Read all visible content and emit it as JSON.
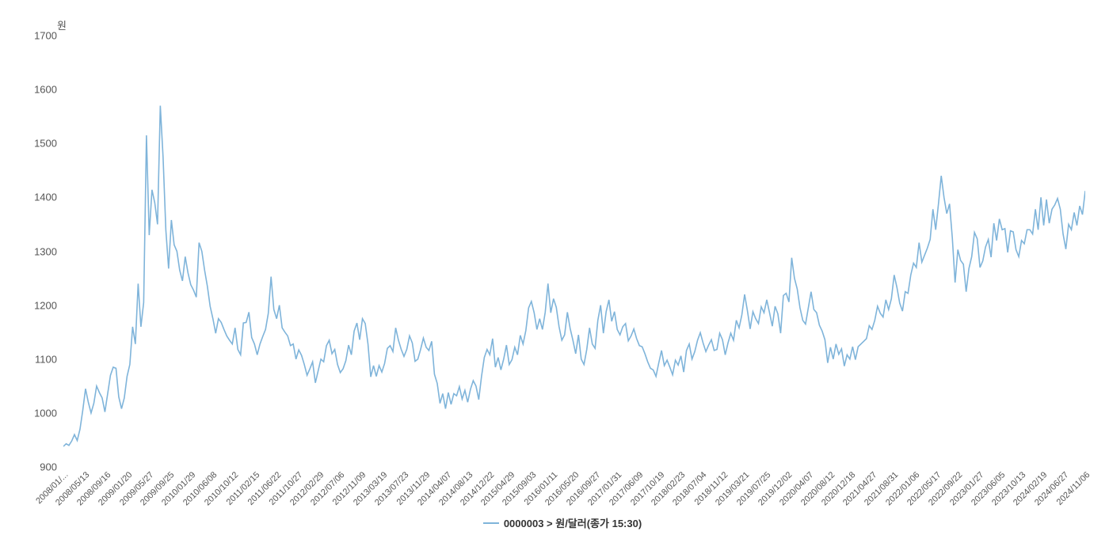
{
  "chart": {
    "type": "line",
    "y_axis": {
      "title": "원",
      "ticks": [
        900,
        1000,
        1100,
        1200,
        1300,
        1400,
        1500,
        1600,
        1700
      ],
      "min": 900,
      "max": 1700,
      "title_fontsize": 13,
      "label_fontsize": 13,
      "label_color": "#555555"
    },
    "x_axis": {
      "labels": [
        "2008/01/...",
        "2008/05/13",
        "2008/09/16",
        "2009/01/20",
        "2009/05/27",
        "2009/09/25",
        "2010/01/29",
        "2010/06/08",
        "2010/10/12",
        "2011/02/15",
        "2011/06/22",
        "2011/10/27",
        "2012/02/29",
        "2012/07/06",
        "2012/11/09",
        "2013/03/19",
        "2013/07/23",
        "2013/11/29",
        "2014/04/07",
        "2014/08/13",
        "2014/12/22",
        "2015/04/29",
        "2015/09/03",
        "2016/01/11",
        "2016/05/20",
        "2016/09/27",
        "2017/01/31",
        "2017/06/09",
        "2017/10/19",
        "2018/02/23",
        "2018/07/04",
        "2018/11/12",
        "2019/03/21",
        "2019/07/25",
        "2019/12/02",
        "2020/04/07",
        "2020/08/12",
        "2020/12/18",
        "2021/04/27",
        "2021/08/31",
        "2022/01/06",
        "2022/05/17",
        "2022/09/22",
        "2023/01/27",
        "2023/06/05",
        "2023/10/13",
        "2024/02/19",
        "2024/06/27",
        "2024/11/06"
      ],
      "label_fontsize": 11,
      "label_color": "#555555",
      "rotation": -45
    },
    "series": {
      "color": "#7fb4da",
      "line_width": 1.6,
      "data": [
        938,
        943,
        940,
        948,
        960,
        949,
        970,
        1005,
        1045,
        1020,
        1000,
        1018,
        1050,
        1038,
        1028,
        1002,
        1036,
        1070,
        1085,
        1083,
        1030,
        1008,
        1028,
        1068,
        1090,
        1160,
        1128,
        1240,
        1160,
        1205,
        1515,
        1330,
        1414,
        1390,
        1350,
        1570,
        1475,
        1340,
        1268,
        1358,
        1312,
        1300,
        1265,
        1245,
        1290,
        1260,
        1238,
        1228,
        1215,
        1316,
        1300,
        1265,
        1235,
        1198,
        1175,
        1148,
        1175,
        1168,
        1155,
        1143,
        1135,
        1128,
        1158,
        1118,
        1108,
        1167,
        1168,
        1187,
        1140,
        1128,
        1108,
        1128,
        1142,
        1155,
        1185,
        1253,
        1192,
        1175,
        1200,
        1158,
        1150,
        1143,
        1125,
        1128,
        1100,
        1117,
        1107,
        1090,
        1070,
        1082,
        1095,
        1056,
        1078,
        1100,
        1095,
        1125,
        1135,
        1110,
        1118,
        1090,
        1075,
        1082,
        1097,
        1126,
        1108,
        1152,
        1167,
        1136,
        1175,
        1166,
        1128,
        1067,
        1088,
        1068,
        1088,
        1076,
        1092,
        1120,
        1125,
        1114,
        1158,
        1135,
        1118,
        1105,
        1118,
        1143,
        1130,
        1096,
        1100,
        1118,
        1139,
        1122,
        1116,
        1133,
        1072,
        1055,
        1018,
        1036,
        1008,
        1038,
        1016,
        1036,
        1032,
        1049,
        1026,
        1042,
        1020,
        1044,
        1060,
        1050,
        1025,
        1068,
        1103,
        1118,
        1108,
        1138,
        1085,
        1103,
        1080,
        1100,
        1126,
        1090,
        1099,
        1122,
        1108,
        1144,
        1128,
        1153,
        1195,
        1207,
        1186,
        1155,
        1175,
        1155,
        1187,
        1240,
        1186,
        1212,
        1196,
        1160,
        1135,
        1145,
        1187,
        1157,
        1135,
        1110,
        1145,
        1100,
        1090,
        1118,
        1158,
        1128,
        1120,
        1172,
        1200,
        1148,
        1188,
        1210,
        1170,
        1188,
        1155,
        1145,
        1160,
        1166,
        1134,
        1143,
        1156,
        1138,
        1125,
        1123,
        1110,
        1095,
        1083,
        1080,
        1068,
        1093,
        1116,
        1088,
        1098,
        1085,
        1071,
        1098,
        1089,
        1106,
        1076,
        1116,
        1128,
        1100,
        1114,
        1135,
        1149,
        1130,
        1114,
        1126,
        1136,
        1116,
        1118,
        1148,
        1136,
        1108,
        1130,
        1148,
        1135,
        1172,
        1158,
        1182,
        1220,
        1190,
        1156,
        1188,
        1175,
        1166,
        1197,
        1186,
        1210,
        1186,
        1161,
        1198,
        1184,
        1148,
        1218,
        1222,
        1206,
        1288,
        1250,
        1230,
        1195,
        1172,
        1165,
        1195,
        1225,
        1192,
        1186,
        1163,
        1152,
        1136,
        1093,
        1122,
        1100,
        1128,
        1109,
        1119,
        1087,
        1108,
        1100,
        1123,
        1099,
        1123,
        1128,
        1133,
        1138,
        1162,
        1155,
        1172,
        1198,
        1185,
        1178,
        1210,
        1192,
        1212,
        1256,
        1233,
        1204,
        1189,
        1225,
        1222,
        1256,
        1278,
        1270,
        1316,
        1280,
        1293,
        1306,
        1322,
        1378,
        1340,
        1388,
        1440,
        1400,
        1370,
        1388,
        1325,
        1242,
        1303,
        1283,
        1276,
        1225,
        1268,
        1290,
        1335,
        1323,
        1270,
        1282,
        1308,
        1322,
        1289,
        1352,
        1320,
        1360,
        1340,
        1342,
        1298,
        1338,
        1336,
        1303,
        1290,
        1320,
        1314,
        1340,
        1340,
        1332,
        1378,
        1340,
        1400,
        1348,
        1396,
        1352,
        1378,
        1386,
        1398,
        1378,
        1332,
        1304,
        1350,
        1340,
        1372,
        1348,
        1384,
        1368,
        1412
      ]
    },
    "background_color": "#ffffff",
    "grid": false,
    "plot_border": false,
    "legend": {
      "label": "0000003 > 원/달러(종가 15:30)",
      "position": "bottom-center",
      "fontsize": 13,
      "fontweight": 700,
      "text_color": "#333333"
    }
  }
}
